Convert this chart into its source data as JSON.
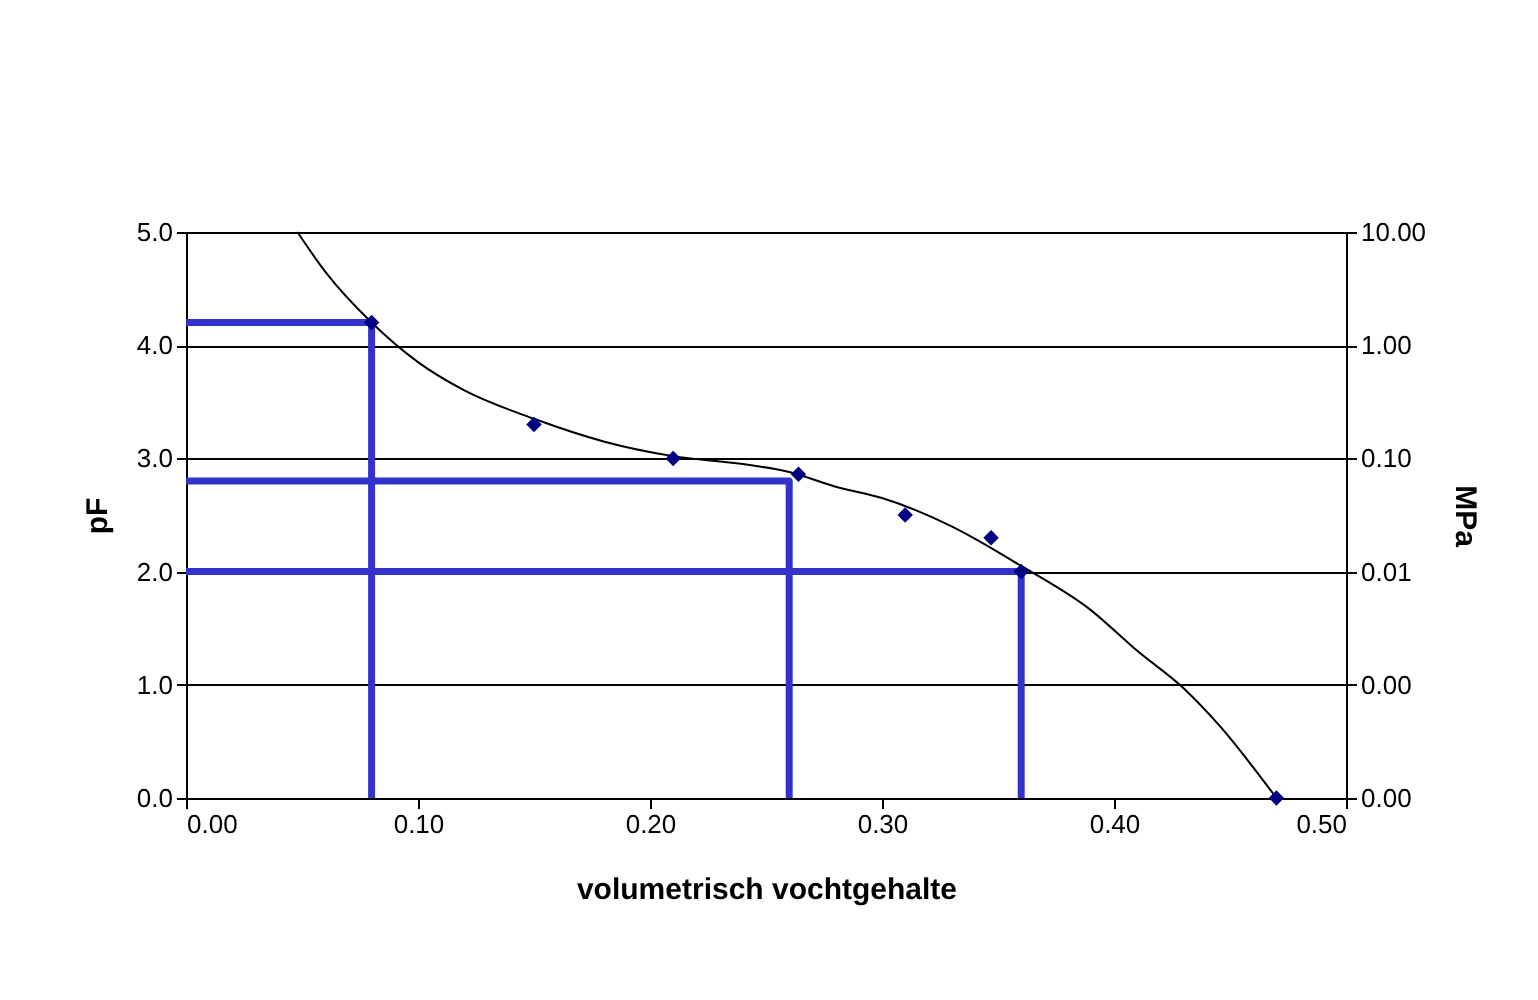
{
  "chart_data": {
    "type": "line",
    "xlabel": "volumetrisch vochtgehalte",
    "ylabel": "pF",
    "y2label": "MPa",
    "xlim": [
      0,
      0.5
    ],
    "xticks": [
      {
        "value": 0,
        "label": "0.00"
      },
      {
        "value": 0.1,
        "label": "0.10"
      },
      {
        "value": 0.2,
        "label": "0.20"
      },
      {
        "value": 0.3,
        "label": "0.30"
      },
      {
        "value": 0.4,
        "label": "0.40"
      },
      {
        "value": 0.5,
        "label": "0.50"
      }
    ],
    "ylim": [
      0,
      5
    ],
    "yticks": [
      {
        "value": 0,
        "label": "0.0"
      },
      {
        "value": 1,
        "label": "1.0"
      },
      {
        "value": 2,
        "label": "2.0"
      },
      {
        "value": 3,
        "label": "3.0"
      },
      {
        "value": 4,
        "label": "4.0"
      },
      {
        "value": 5,
        "label": "5.0"
      }
    ],
    "y2lim": [
      0.0001,
      10
    ],
    "y2ticks": [
      {
        "value": 0.0001,
        "label": "0.00"
      },
      {
        "value": 0.001,
        "label": "0.00"
      },
      {
        "value": 0.01,
        "label": "0.01"
      },
      {
        "value": 0.1,
        "label": "0.10"
      },
      {
        "value": 1,
        "label": "1.00"
      },
      {
        "value": 10,
        "label": "10.00"
      }
    ],
    "log": "y2",
    "grid": "y",
    "series": [
      {
        "color": "#000000",
        "x": [
          0.048,
          0.06,
          0.08,
          0.1,
          0.12,
          0.15,
          0.18,
          0.21,
          0.24,
          0.26,
          0.28,
          0.3,
          0.33,
          0.36,
          0.39,
          0.41,
          0.43,
          0.445,
          0.47
        ],
        "values": [
          5.0,
          4.65,
          4.2,
          3.85,
          3.6,
          3.35,
          3.15,
          3.02,
          2.95,
          2.88,
          2.75,
          2.65,
          2.4,
          2.05,
          1.66,
          1.3,
          0.97,
          0.65,
          0.0
        ]
      },
      {
        "color": "#3333cc",
        "x": [
          0,
          0.08,
          0.08
        ],
        "values": [
          4.2,
          4.2,
          0
        ]
      },
      {
        "color": "#3333cc",
        "x": [
          0,
          0.26,
          0.26
        ],
        "values": [
          2.8,
          2.8,
          0
        ]
      },
      {
        "color": "#3333cc",
        "x": [
          0,
          0.36,
          0.36
        ],
        "values": [
          2.0,
          2.0,
          0
        ]
      },
      {
        "type": "scatter",
        "marker": "diamond",
        "color": "#000080",
        "x": [
          0.08,
          0.15,
          0.21,
          0.264,
          0.31,
          0.347,
          0.36,
          0.47
        ],
        "values": [
          4.2,
          3.3,
          3.0,
          2.86,
          2.5,
          2.3,
          2.0,
          0.0
        ]
      }
    ]
  }
}
